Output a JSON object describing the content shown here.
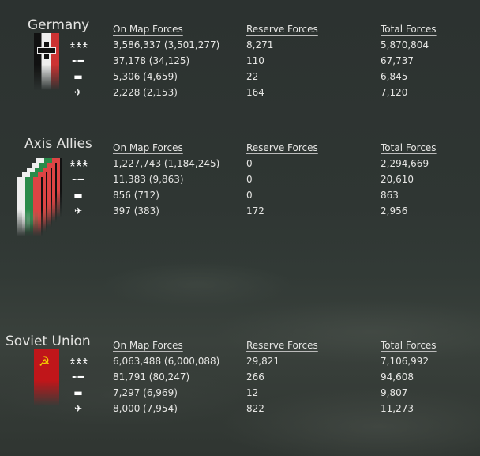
{
  "headers": {
    "on_map": "On Map Forces",
    "reserve": "Reserve Forces",
    "total": "Total Forces"
  },
  "icons": [
    "infantry-icon",
    "artillery-icon",
    "tank-icon",
    "aircraft-icon"
  ],
  "factions": [
    {
      "name": "Germany",
      "rows": [
        {
          "on_map": "3,586,337 (3,501,277)",
          "reserve": "8,271",
          "total": "5,870,804"
        },
        {
          "on_map": "37,178 (34,125)",
          "reserve": "110",
          "total": "67,737"
        },
        {
          "on_map": "5,306 (4,659)",
          "reserve": "22",
          "total": "6,845"
        },
        {
          "on_map": "2,228 (2,153)",
          "reserve": "164",
          "total": "7,120"
        }
      ]
    },
    {
      "name": "Axis Allies",
      "rows": [
        {
          "on_map": "1,227,743 (1,184,245)",
          "reserve": "0",
          "total": "2,294,669"
        },
        {
          "on_map": "11,383 (9,863)",
          "reserve": "0",
          "total": "20,610"
        },
        {
          "on_map": "856 (712)",
          "reserve": "0",
          "total": "863"
        },
        {
          "on_map": "397 (383)",
          "reserve": "172",
          "total": "2,956"
        }
      ]
    },
    {
      "name": "Soviet Union",
      "rows": [
        {
          "on_map": "6,063,488 (6,000,088)",
          "reserve": "29,821",
          "total": "7,106,992"
        },
        {
          "on_map": "81,791 (80,247)",
          "reserve": "266",
          "total": "94,608"
        },
        {
          "on_map": "7,297 (6,969)",
          "reserve": "12",
          "total": "9,807"
        },
        {
          "on_map": "8,000 (7,954)",
          "reserve": "822",
          "total": "11,273"
        }
      ]
    }
  ]
}
